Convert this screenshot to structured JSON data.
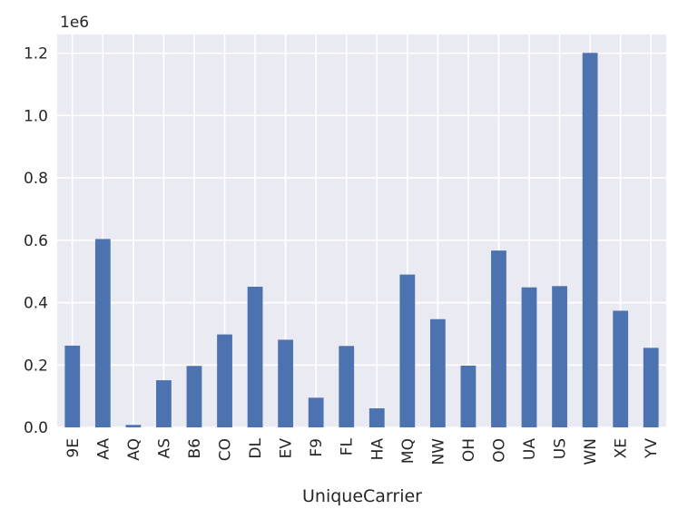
{
  "chart_data": {
    "type": "bar",
    "xlabel": "UniqueCarrier",
    "ylabel": "",
    "offset_label": "1e6",
    "categories": [
      "9E",
      "AA",
      "AQ",
      "AS",
      "B6",
      "CO",
      "DL",
      "EV",
      "F9",
      "FL",
      "HA",
      "MQ",
      "NW",
      "OH",
      "OO",
      "UA",
      "US",
      "WN",
      "XE",
      "YV"
    ],
    "values": [
      262000,
      604000,
      7800,
      151000,
      197000,
      298000,
      451000,
      281000,
      95000,
      261000,
      61000,
      490000,
      347000,
      198000,
      567000,
      449000,
      453000,
      1201000,
      374000,
      255000
    ],
    "ylim": [
      0,
      1260000
    ],
    "yticks": [
      0,
      200000,
      400000,
      600000,
      800000,
      1000000,
      1200000
    ],
    "ytick_labels": [
      "0.0",
      "0.2",
      "0.4",
      "0.6",
      "0.8",
      "1.0",
      "1.2"
    ],
    "grid": true,
    "colors": {
      "bar": "#4c72b0",
      "background": "#eaeaf2",
      "grid": "#ffffff",
      "text": "#262626"
    }
  }
}
